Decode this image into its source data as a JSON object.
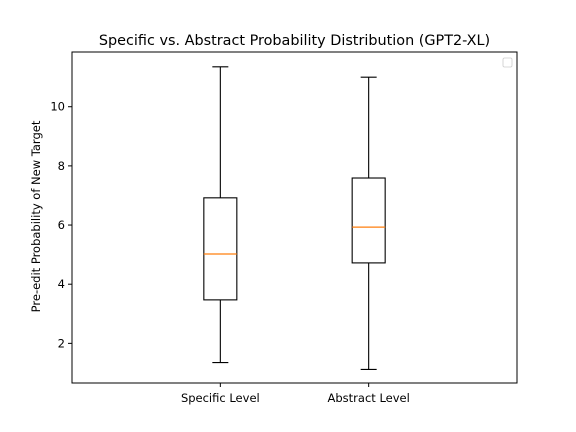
{
  "chart_data": {
    "type": "boxplot",
    "title": "Specific vs. Abstract Probability Distribution (GPT2-XL)",
    "xlabel": "",
    "ylabel": "Pre-edit Probability of New Target",
    "categories": [
      "Specific Level",
      "Abstract Level"
    ],
    "boxes": [
      {
        "whisker_low": 1.35,
        "q1": 3.47,
        "median": 5.02,
        "q3": 6.92,
        "whisker_high": 11.35
      },
      {
        "whisker_low": 1.12,
        "q1": 4.72,
        "median": 5.93,
        "q3": 7.59,
        "whisker_high": 11.0
      }
    ],
    "ylim": [
      0.66,
      11.85
    ],
    "yticks": [
      2,
      4,
      6,
      8,
      10
    ],
    "grid": false,
    "legend": "top-right (empty)",
    "colors": {
      "box": "#000000",
      "median": "#ff7f0e",
      "axes": "#000000"
    }
  }
}
